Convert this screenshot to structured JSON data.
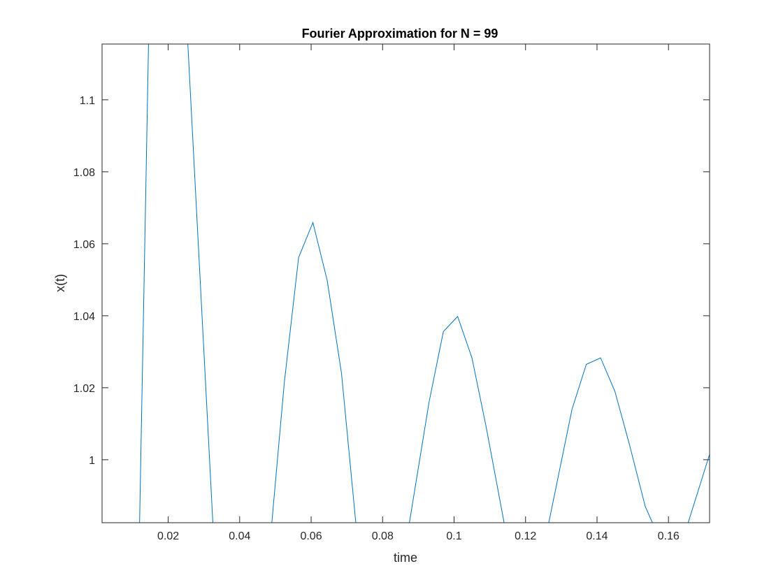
{
  "chart_data": {
    "type": "line",
    "title": "Fourier Approximation for N = 99",
    "xlabel": "time",
    "ylabel": "x(t)",
    "xlim": [
      0.0015,
      0.1715
    ],
    "ylim": [
      0.9825,
      1.1155
    ],
    "xticks": [
      0.02,
      0.04,
      0.06,
      0.08,
      0.1,
      0.12,
      0.14,
      0.16
    ],
    "xtick_labels": [
      "0.02",
      "0.04",
      "0.06",
      "0.08",
      "0.1",
      "0.12",
      "0.14",
      "0.16"
    ],
    "yticks": [
      1.0,
      1.02,
      1.04,
      1.06,
      1.08,
      1.1
    ],
    "ytick_labels": [
      "1",
      "1.02",
      "1.04",
      "1.06",
      "1.08",
      "1.1"
    ],
    "grid": false,
    "line_color": "#0072BD",
    "series": [
      {
        "x": [
          0.012,
          0.0145,
          0.0255,
          0.0325,
          0.049,
          0.0525,
          0.0565,
          0.0605,
          0.0645,
          0.0685,
          0.0725,
          0.0875,
          0.093,
          0.097,
          0.101,
          0.105,
          0.109,
          0.114,
          0.1265,
          0.133,
          0.137,
          0.141,
          0.145,
          0.149,
          0.1535,
          0.1555,
          0.1655,
          0.1715
        ],
        "y": [
          0.9825,
          1.1155,
          1.1155,
          0.9825,
          0.9825,
          1.0215,
          1.0562,
          1.0659,
          1.0498,
          1.024,
          0.9825,
          0.9825,
          1.016,
          1.0356,
          1.0398,
          1.0283,
          1.009,
          0.9825,
          0.9825,
          1.014,
          1.0265,
          1.0283,
          1.019,
          1.0045,
          0.987,
          0.9825,
          0.9825,
          1.0015
        ]
      }
    ]
  }
}
